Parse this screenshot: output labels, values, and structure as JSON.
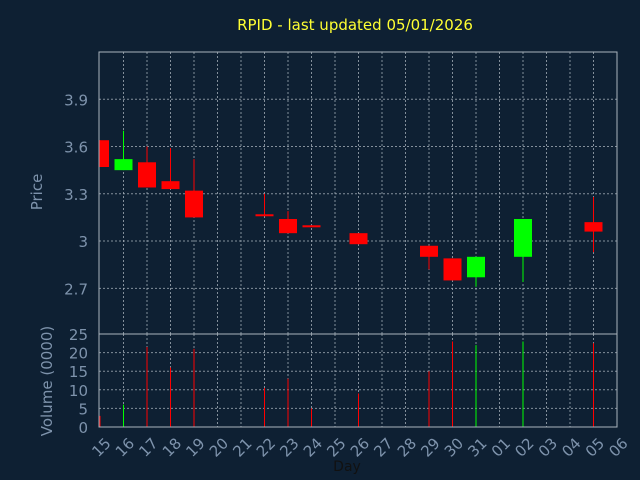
{
  "title": "RPID - last updated 05/01/2026",
  "colors": {
    "background": "#0e2033",
    "grid": "#aab4be",
    "axis_text": "#7e93ac",
    "title": "#ffff33",
    "up": "#00ff00",
    "down": "#ff0000"
  },
  "chart_data": [
    {
      "type": "candlestick",
      "ylabel": "Price",
      "xlabel": "Day",
      "ylim": [
        2.41,
        4.2
      ],
      "yticks": [
        "2.7",
        "3",
        "3.3",
        "3.6",
        "3.9"
      ],
      "grid": true,
      "x_tick_labels": [
        "15",
        "16",
        "17",
        "18",
        "19",
        "20",
        "21",
        "22",
        "23",
        "24",
        "25",
        "26",
        "27",
        "28",
        "29",
        "30",
        "31",
        "01",
        "02",
        "03",
        "04",
        "05",
        "06"
      ],
      "candles": [
        {
          "day": "15",
          "open": 3.64,
          "close": 3.47,
          "high": 3.64,
          "low": 3.47
        },
        {
          "day": "16",
          "open": 3.45,
          "close": 3.52,
          "high": 3.7,
          "low": 3.45
        },
        {
          "day": "17",
          "open": 3.5,
          "close": 3.34,
          "high": 3.6,
          "low": 3.34
        },
        {
          "day": "18",
          "open": 3.38,
          "close": 3.33,
          "high": 3.59,
          "low": 3.33
        },
        {
          "day": "19",
          "open": 3.32,
          "close": 3.15,
          "high": 3.52,
          "low": 3.15
        },
        {
          "day": "22",
          "open": 3.17,
          "close": 3.16,
          "high": 3.3,
          "low": 3.16
        },
        {
          "day": "23",
          "open": 3.14,
          "close": 3.05,
          "high": 3.19,
          "low": 3.05
        },
        {
          "day": "24",
          "open": 3.1,
          "close": 3.09,
          "high": 3.1,
          "low": 3.09
        },
        {
          "day": "26",
          "open": 3.05,
          "close": 2.98,
          "high": 3.05,
          "low": 2.98
        },
        {
          "day": "29",
          "open": 2.97,
          "close": 2.9,
          "high": 2.97,
          "low": 2.82
        },
        {
          "day": "30",
          "open": 2.89,
          "close": 2.75,
          "high": 2.89,
          "low": 2.75
        },
        {
          "day": "31",
          "open": 2.77,
          "close": 2.9,
          "high": 2.9,
          "low": 2.71
        },
        {
          "day": "02",
          "open": 2.9,
          "close": 3.14,
          "high": 3.14,
          "low": 2.74
        },
        {
          "day": "05",
          "open": 3.12,
          "close": 3.06,
          "high": 3.28,
          "low": 2.93
        }
      ]
    },
    {
      "type": "bar",
      "ylabel": "Volume (0000)",
      "xlabel": "Day",
      "ylim": [
        0,
        25
      ],
      "yticks": [
        "0",
        "5",
        "10",
        "15",
        "20",
        "25"
      ],
      "grid": true,
      "bars": [
        {
          "day": "15",
          "value": 3,
          "direction": "down"
        },
        {
          "day": "16",
          "value": 6,
          "direction": "up"
        },
        {
          "day": "17",
          "value": 21.5,
          "direction": "down"
        },
        {
          "day": "18",
          "value": 16,
          "direction": "down"
        },
        {
          "day": "19",
          "value": 21,
          "direction": "down"
        },
        {
          "day": "22",
          "value": 10.5,
          "direction": "down"
        },
        {
          "day": "23",
          "value": 13,
          "direction": "down"
        },
        {
          "day": "24",
          "value": 5,
          "direction": "down"
        },
        {
          "day": "26",
          "value": 9,
          "direction": "down"
        },
        {
          "day": "29",
          "value": 15,
          "direction": "down"
        },
        {
          "day": "30",
          "value": 23,
          "direction": "down"
        },
        {
          "day": "31",
          "value": 22,
          "direction": "up"
        },
        {
          "day": "02",
          "value": 23,
          "direction": "up"
        },
        {
          "day": "05",
          "value": 22.5,
          "direction": "down"
        }
      ]
    }
  ]
}
